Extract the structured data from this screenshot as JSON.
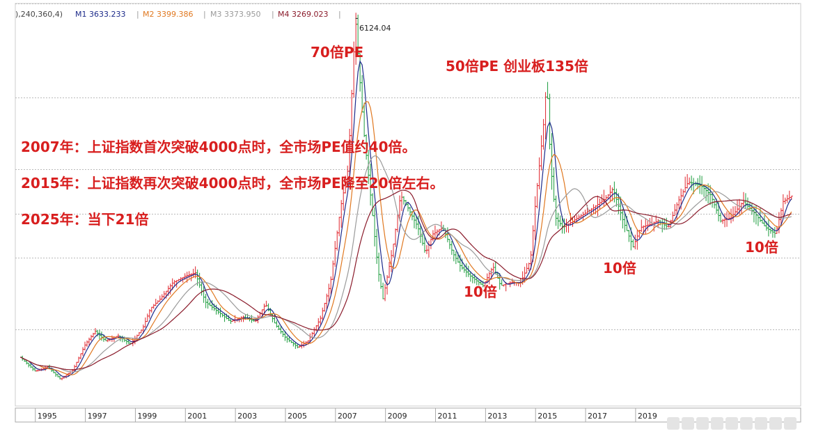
{
  "legend": {
    "prefix": "),240,360,4)",
    "m1": "M1 3633.233",
    "m2": "M2 3399.386",
    "m3": "M3 3373.950",
    "m4": "M4 3269.023",
    "sep": "|"
  },
  "annotations": {
    "peak_2007": "70倍PE",
    "peak_2015": "50倍PE  创业板135倍",
    "line_2007": "2007年：上证指数首次突破4000点时，全市场PE值约40倍。",
    "line_2015": "2015年：上证指数再次突破4000点时，全市场PE降至20倍左右。",
    "line_2025": "2025年：当下21倍",
    "low_2013": "10倍",
    "low_2018": "10倍",
    "low_2023": "10倍"
  },
  "peak_label": "6124.04",
  "colors": {
    "up": "#e0242c",
    "down": "#1a9b3c",
    "m1": "#1c2a8a",
    "m2": "#e07820",
    "m3": "#9a9a9a",
    "m4": "#8a1a2a",
    "annotation": "#d81e1e",
    "grid": "#b9b9b9"
  },
  "chart_data": {
    "type": "line",
    "title": "",
    "xlabel": "",
    "ylabel": "",
    "x_ticks": [
      "1995",
      "1997",
      "1999",
      "2001",
      "2003",
      "2005",
      "2007",
      "2009",
      "2011",
      "2013",
      "2015",
      "2017",
      "2019"
    ],
    "xlim": [
      1994.2,
      2025.6
    ],
    "ylim": [
      200,
      6300
    ],
    "grid": "horizontal dashed",
    "series": [
      {
        "name": "",
        "role": "monthly index",
        "x": [
          1994.4,
          1995.0,
          1995.5,
          1996.0,
          1996.5,
          1997.0,
          1997.4,
          1997.8,
          1998.3,
          1998.8,
          1999.3,
          1999.6,
          2000.0,
          2000.5,
          2001.0,
          2001.4,
          2001.8,
          2002.3,
          2002.8,
          2003.3,
          2003.8,
          2004.2,
          2004.6,
          2005.0,
          2005.5,
          2005.9,
          2006.4,
          2006.8,
          2007.2,
          2007.5,
          2007.8,
          2008.1,
          2008.4,
          2008.7,
          2008.9,
          2009.3,
          2009.6,
          2009.9,
          2010.3,
          2010.6,
          2010.9,
          2011.3,
          2011.7,
          2012.0,
          2012.4,
          2012.9,
          2013.3,
          2013.6,
          2014.0,
          2014.4,
          2014.8,
          2015.0,
          2015.3,
          2015.45,
          2015.6,
          2015.8,
          2016.1,
          2016.5,
          2016.9,
          2017.3,
          2017.8,
          2018.1,
          2018.5,
          2018.9,
          2019.2,
          2019.6,
          2019.9,
          2020.3,
          2020.7,
          2021.1,
          2021.6,
          2022.0,
          2022.4,
          2022.8,
          2023.3,
          2023.8,
          2024.2,
          2024.6,
          2024.9,
          2025.3
        ],
        "values": [
          900,
          680,
          750,
          560,
          700,
          1100,
          1300,
          1150,
          1230,
          1100,
          1350,
          1650,
          1800,
          2050,
          2150,
          2200,
          1750,
          1600,
          1450,
          1520,
          1450,
          1720,
          1400,
          1200,
          1050,
          1150,
          1500,
          2050,
          3200,
          3800,
          6124,
          4500,
          3400,
          2250,
          1800,
          2600,
          3400,
          3200,
          2900,
          2500,
          2800,
          2900,
          2500,
          2300,
          2150,
          2000,
          2300,
          2000,
          2050,
          2050,
          2400,
          3300,
          4400,
          5166,
          3900,
          3050,
          2900,
          3000,
          3100,
          3200,
          3350,
          3500,
          3000,
          2600,
          2900,
          2950,
          3000,
          2900,
          3300,
          3600,
          3550,
          3400,
          3000,
          3050,
          3300,
          3100,
          2900,
          2800,
          3300,
          3400
        ]
      }
    ]
  }
}
